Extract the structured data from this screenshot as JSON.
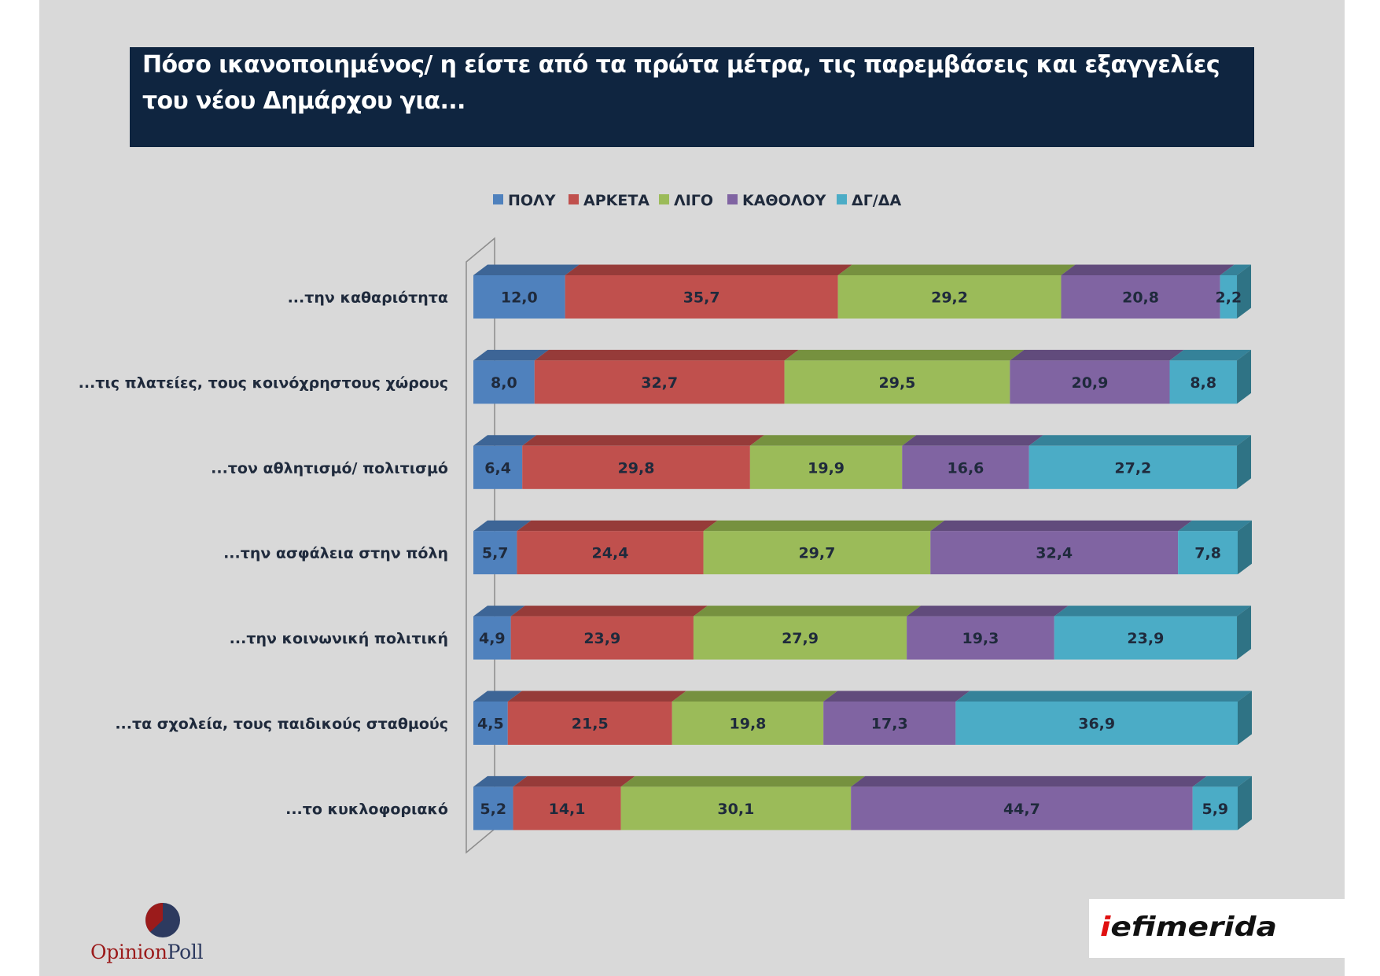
{
  "title": "Πόσο ικανοποιημένος/ η είστε από τα πρώτα μέτρα, τις παρεμβάσεις και εξαγγελίες του νέου Δημάρχου για...",
  "logos": {
    "left": {
      "part1": "Opinion",
      "part2": "Poll"
    },
    "right": {
      "part1": "i",
      "part2": "efimerida"
    }
  },
  "colors": {
    "title_background": "#0f2540",
    "slide_background": "#d9d9d9"
  },
  "chart_data": {
    "type": "bar",
    "orientation": "horizontal",
    "stacked": true,
    "three_d": true,
    "legend_position": "top",
    "categories": [
      "...την καθαριότητα",
      "...τις πλατείες, τους κοινόχρηστους χώρους",
      "...τον αθλητισμό/ πολιτισμό",
      "...την ασφάλεια στην πόλη",
      "...την κοινωνική πολιτική",
      "...τα σχολεία, τους παιδικούς σταθμούς",
      "...το κυκλοφοριακό"
    ],
    "series": [
      {
        "name": "ΠΟΛΥ",
        "color": "#4f81bd",
        "top": "#3d6596",
        "side": "#365a87",
        "values": [
          12.0,
          8.0,
          6.4,
          5.7,
          4.9,
          4.5,
          5.2
        ],
        "labels": [
          "12,0",
          "8,0",
          "6,4",
          "5,7",
          "4,9",
          "4,5",
          "5,2"
        ]
      },
      {
        "name": "ΑΡΚΕΤΑ",
        "color": "#c0504d",
        "top": "#963b39",
        "side": "#873533",
        "values": [
          35.7,
          32.7,
          29.8,
          24.4,
          23.9,
          21.5,
          14.1
        ],
        "labels": [
          "35,7",
          "32,7",
          "29,8",
          "24,4",
          "23,9",
          "21,5",
          "14,1"
        ]
      },
      {
        "name": "ΛΙΓΟ",
        "color": "#9bbb59",
        "top": "#76913f",
        "side": "#6b8439",
        "values": [
          29.2,
          29.5,
          19.9,
          29.7,
          27.9,
          19.8,
          30.1
        ],
        "labels": [
          "29,2",
          "29,5",
          "19,9",
          "29,7",
          "27,9",
          "19,8",
          "30,1"
        ]
      },
      {
        "name": "ΚΑΘΟΛΟΥ",
        "color": "#8064a2",
        "top": "#614b7c",
        "side": "#584470",
        "values": [
          20.8,
          20.9,
          16.6,
          32.4,
          19.3,
          17.3,
          44.7
        ],
        "labels": [
          "20,8",
          "20,9",
          "16,6",
          "32,4",
          "19,3",
          "17,3",
          "44,7"
        ]
      },
      {
        "name": "ΔΓ/ΔΑ",
        "color": "#4bacc6",
        "top": "#358299",
        "side": "#2f7385",
        "values": [
          2.2,
          8.8,
          27.2,
          7.8,
          23.9,
          36.9,
          5.9
        ],
        "labels": [
          "2,2",
          "8,8",
          "27,2",
          "7,8",
          "23,9",
          "36,9",
          "5,9"
        ]
      }
    ]
  }
}
